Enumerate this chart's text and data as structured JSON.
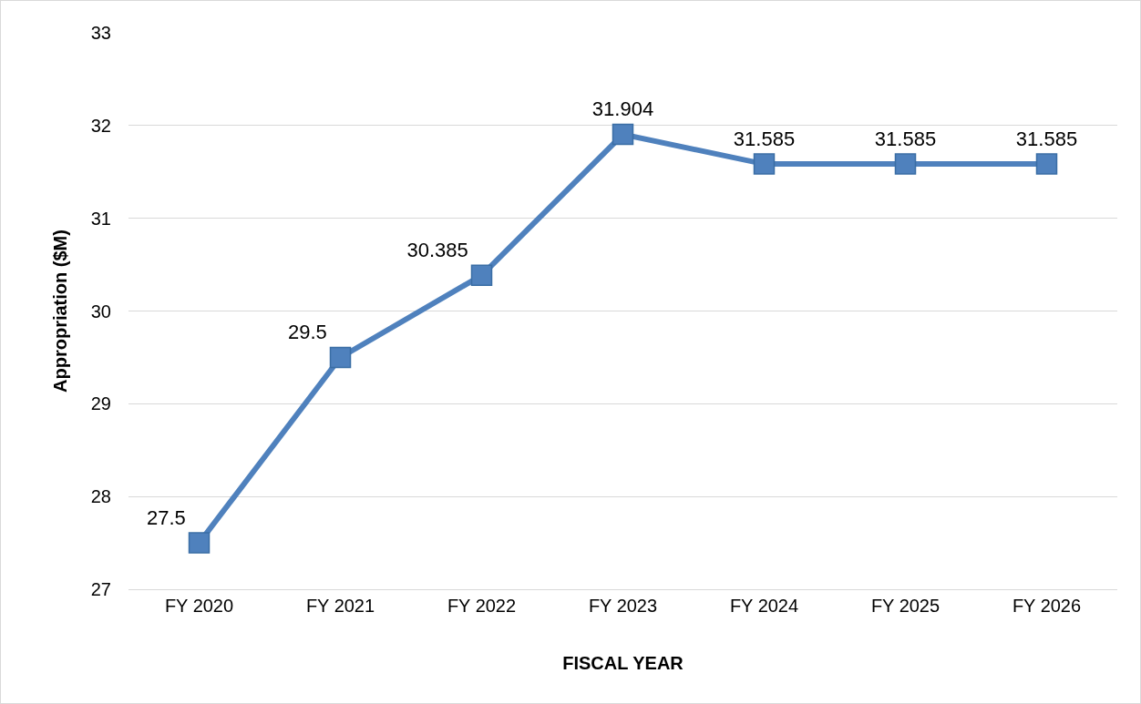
{
  "chart_data": {
    "type": "line",
    "xlabel": "FISCAL YEAR",
    "ylabel": "Appropriation ($M)",
    "categories": [
      "FY 2020",
      "FY 2021",
      "FY 2022",
      "FY 2023",
      "FY 2024",
      "FY 2025",
      "FY 2026"
    ],
    "series": [
      {
        "color": "#4f81bd",
        "values": [
          27.5,
          29.5,
          30.385,
          31.904,
          31.585,
          31.585,
          31.585
        ]
      }
    ],
    "ylim": [
      27,
      33
    ],
    "yticks": [
      27,
      28,
      29,
      30,
      31,
      32,
      33
    ],
    "grid": "y",
    "legend": false,
    "marker": "square",
    "line_style": "solid",
    "data_labels": true
  }
}
